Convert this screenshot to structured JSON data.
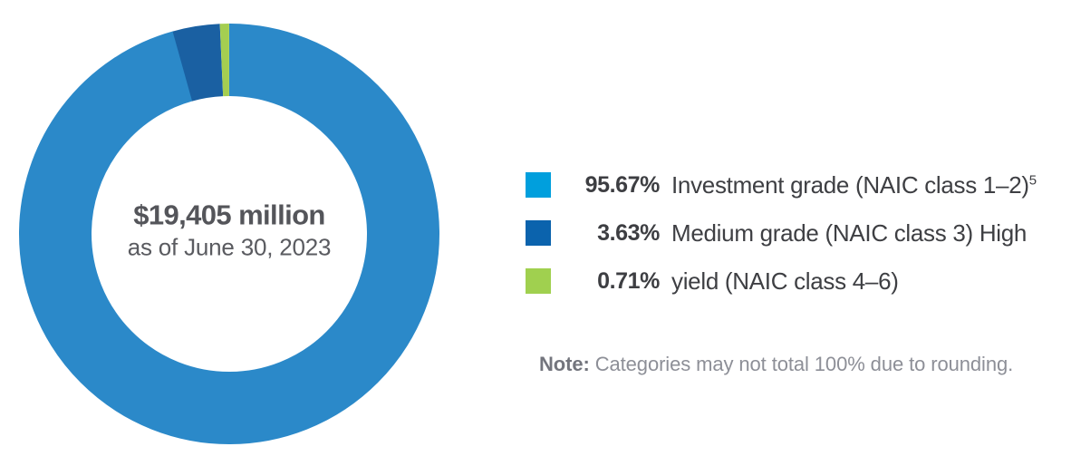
{
  "chart_data": {
    "type": "pie",
    "variant": "donut",
    "start_angle_deg": -90,
    "direction": "clockwise",
    "legend_position": "right",
    "center_label": {
      "line1": "$19,405 million",
      "line2": "as of June 30, 2023"
    },
    "slices": [
      {
        "value": 95.67,
        "pct_label": "95.67%",
        "label": "Investment grade (NAIC class 1–2)",
        "label_sup": "5",
        "color": "#2b89c9",
        "swatch_color": "#009fdd"
      },
      {
        "value": 3.63,
        "pct_label": "3.63%",
        "label": "Medium grade (NAIC class 3) High",
        "label_sup": "",
        "color": "#1a60a2",
        "swatch_color": "#0b63ad"
      },
      {
        "value": 0.71,
        "pct_label": "0.71%",
        "label": "yield (NAIC class 4–6)",
        "label_sup": "",
        "color": "#a5ce51",
        "swatch_color": "#a0d04f"
      }
    ]
  },
  "note": {
    "prefix": "Note:",
    "text": "Categories may not total 100% due to rounding."
  }
}
